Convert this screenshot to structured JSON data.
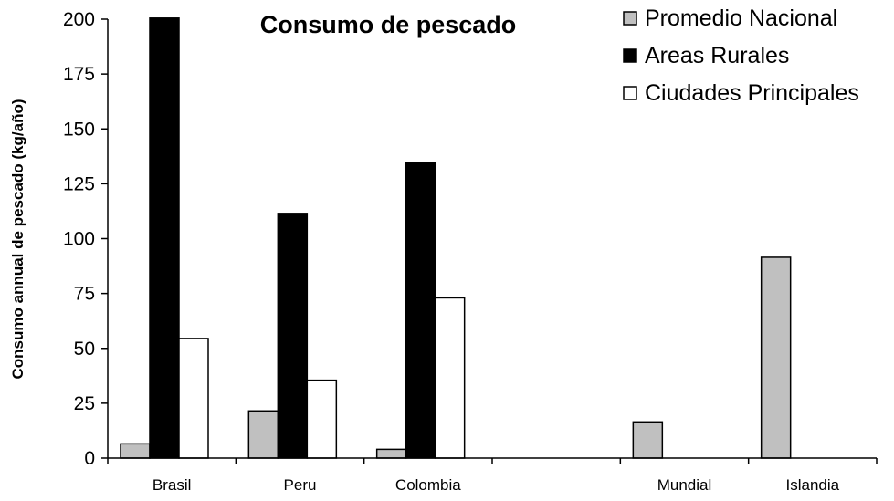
{
  "chart_data": {
    "type": "bar",
    "title": "Consumo de pescado",
    "xlabel": "",
    "ylabel": "Consumo annual de pescado (kg/año)",
    "ylim": [
      0,
      200
    ],
    "yticks": [
      0,
      25,
      50,
      75,
      100,
      125,
      150,
      175,
      200
    ],
    "grid": false,
    "legend_position": "top-right",
    "categories": [
      "Brasil",
      "Peru",
      "Colombia",
      "",
      "Mundial",
      "Islandia"
    ],
    "series": [
      {
        "name": "Promedio Nacional",
        "color": "#c0c0c0",
        "values": [
          6.5,
          21.5,
          4,
          null,
          16.5,
          91.5
        ]
      },
      {
        "name": "Areas Rurales",
        "color": "#000000",
        "values": [
          200.5,
          111.5,
          134.5,
          null,
          null,
          null
        ]
      },
      {
        "name": "Ciudades Principales",
        "color": "#ffffff",
        "values": [
          54.5,
          35.5,
          73,
          null,
          null,
          null
        ]
      }
    ]
  }
}
